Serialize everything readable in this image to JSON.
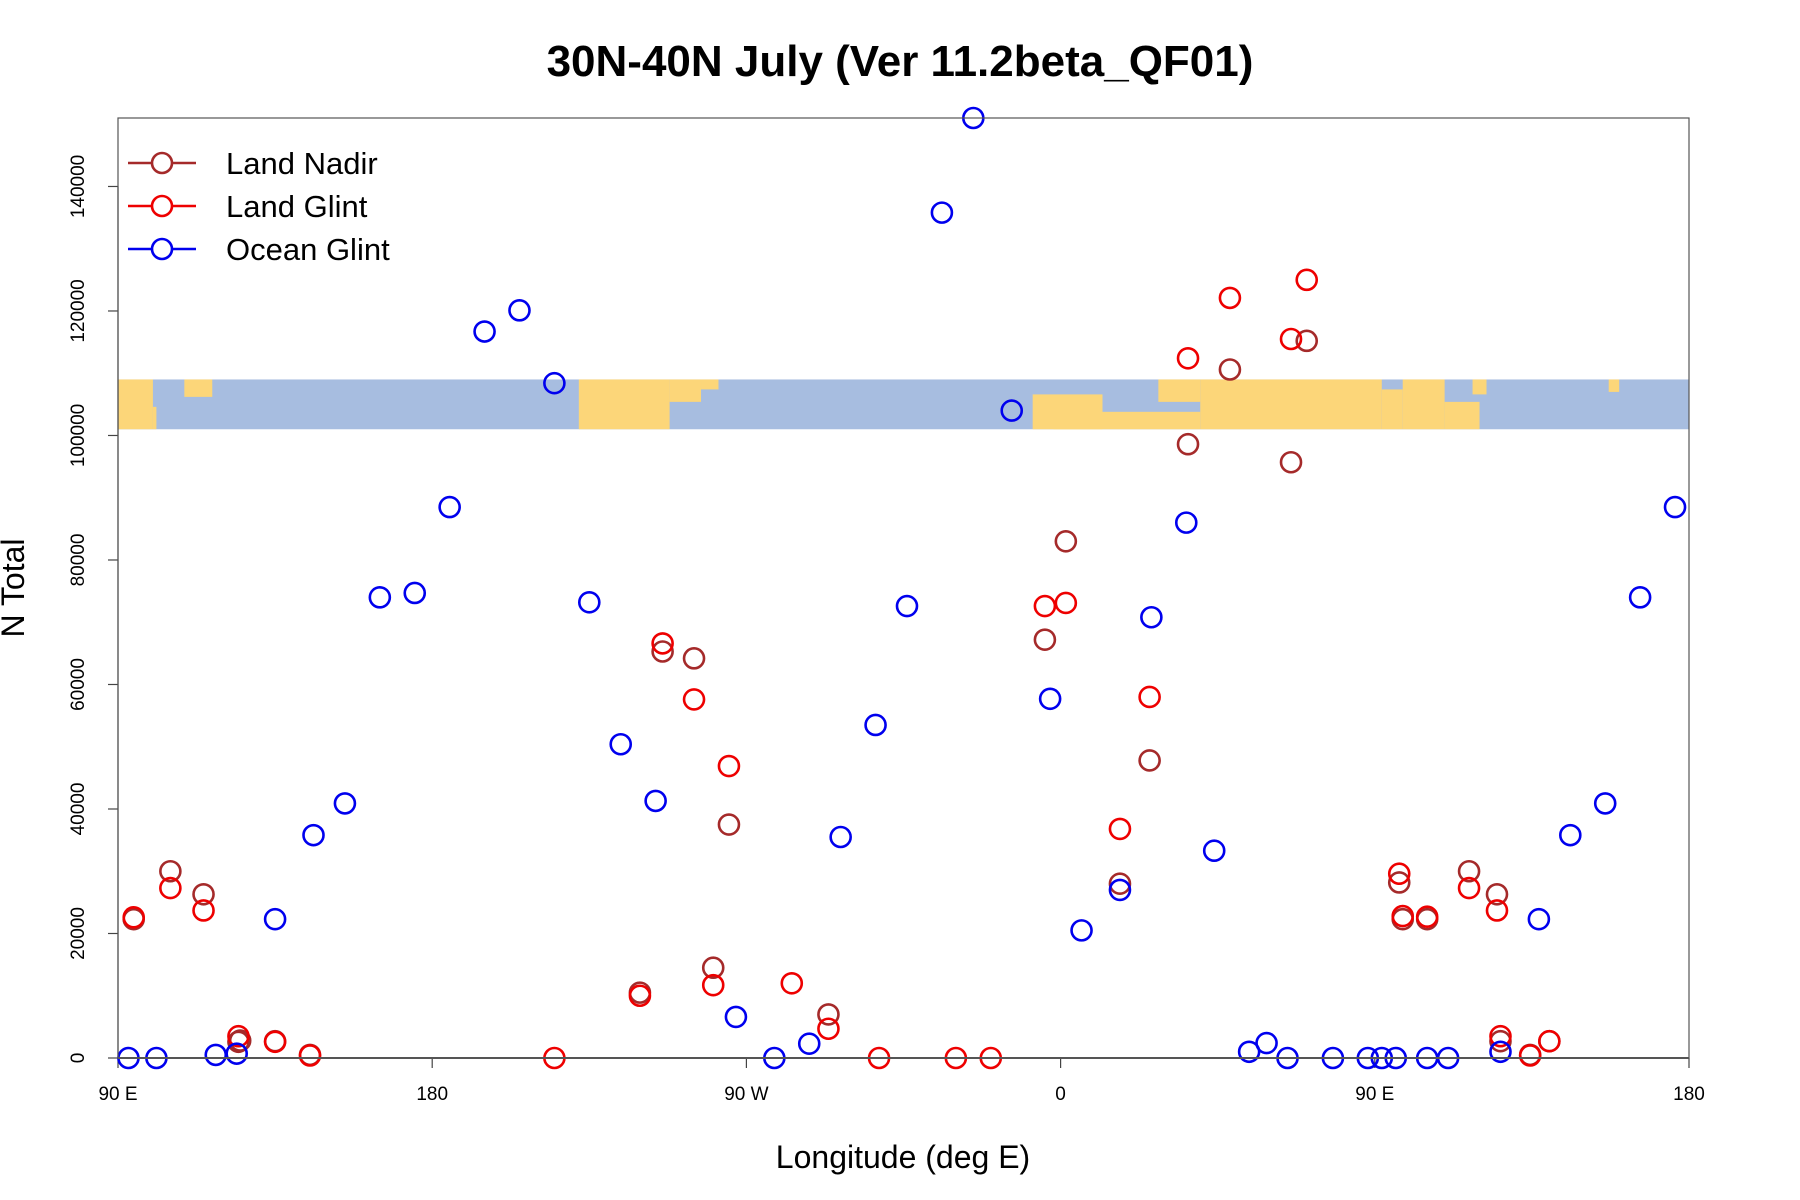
{
  "chart_data": {
    "type": "scatter",
    "title": "30N-40N July (Ver 11.2beta_QF01)",
    "xlabel": "Longitude (deg E)",
    "ylabel": "N Total",
    "xlim": [
      90,
      540
    ],
    "ylim": [
      0,
      151000
    ],
    "x_ticks": [
      {
        "value": 90,
        "label": "90 E"
      },
      {
        "value": 180,
        "label": "180"
      },
      {
        "value": 270,
        "label": "90 W"
      },
      {
        "value": 360,
        "label": "0"
      },
      {
        "value": 450,
        "label": "90 E"
      },
      {
        "value": 540,
        "label": "180"
      }
    ],
    "y_ticks": [
      0,
      20000,
      40000,
      60000,
      80000,
      100000,
      120000,
      140000
    ],
    "legend": {
      "position": "top-left",
      "entries": [
        {
          "name": "Land Nadir",
          "color": "#a52a2a"
        },
        {
          "name": "Land Glint",
          "color": "#ee0000"
        },
        {
          "name": "Ocean Glint",
          "color": "#0000ee"
        }
      ]
    },
    "map_strip": {
      "y_range": [
        101000,
        109000
      ],
      "ocean_color": "#a7bde0",
      "land_color": "#fcd679"
    },
    "series": [
      {
        "name": "Land Nadir",
        "color": "#a52a2a",
        "x": [
          94.5,
          105,
          114.5,
          124.5,
          135,
          145,
          239.5,
          246,
          255,
          265,
          260.5,
          293.5,
          355.5,
          361.5,
          377,
          385.5,
          396.5,
          426,
          430.5,
          408.5,
          125,
          457,
          500,
          486,
          458,
          465,
          477,
          485,
          494.5
        ],
        "y": [
          22300,
          30000,
          26300,
          2600,
          2700,
          500,
          10500,
          65300,
          64200,
          37500,
          14500,
          7000,
          67200,
          83000,
          28000,
          47800,
          98600,
          95700,
          115200,
          110600,
          2800,
          28200,
          2700,
          2700,
          22300,
          22300,
          30000,
          26300,
          500
        ]
      },
      {
        "name": "Land Glint",
        "color": "#ee0000",
        "x": [
          94.5,
          105,
          114.5,
          124.5,
          135,
          145,
          239.5,
          246,
          255,
          265,
          260.5,
          293.5,
          355.5,
          361.5,
          377,
          385.5,
          396.5,
          426,
          430.5,
          408.5,
          457,
          500,
          486,
          458,
          465,
          477,
          485,
          494.5,
          283,
          308,
          330,
          340,
          215
        ],
        "y": [
          22600,
          27300,
          23700,
          3500,
          2600,
          400,
          10000,
          66600,
          57600,
          46900,
          11700,
          4700,
          72600,
          73100,
          36800,
          58000,
          112400,
          115500,
          125000,
          122100,
          29600,
          2700,
          3500,
          22800,
          22700,
          27300,
          23700,
          400,
          12000,
          0,
          0,
          0,
          0
        ]
      },
      {
        "name": "Ocean Glint",
        "color": "#0000ee",
        "x": [
          93,
          101,
          118,
          124,
          135,
          146,
          155,
          165,
          175,
          185,
          195,
          205,
          215,
          225,
          234,
          244,
          267,
          278,
          288,
          297,
          307,
          316,
          326,
          335,
          346,
          357,
          366,
          377,
          386,
          396,
          404,
          414,
          419,
          425,
          438,
          448,
          452,
          456,
          465,
          471,
          486,
          497,
          506,
          516,
          526,
          536
        ],
        "y": [
          0,
          0,
          500,
          700,
          22300,
          35800,
          40900,
          74000,
          74700,
          88500,
          116700,
          120100,
          108400,
          73200,
          50400,
          41300,
          6600,
          0,
          2300,
          35500,
          53500,
          72600,
          135800,
          151000,
          104000,
          57700,
          20500,
          27000,
          70800,
          86000,
          33300,
          1000,
          2400,
          0,
          0,
          0,
          0,
          0,
          0,
          0,
          1000,
          22300,
          35800,
          40900,
          74000,
          88500
        ]
      }
    ]
  }
}
